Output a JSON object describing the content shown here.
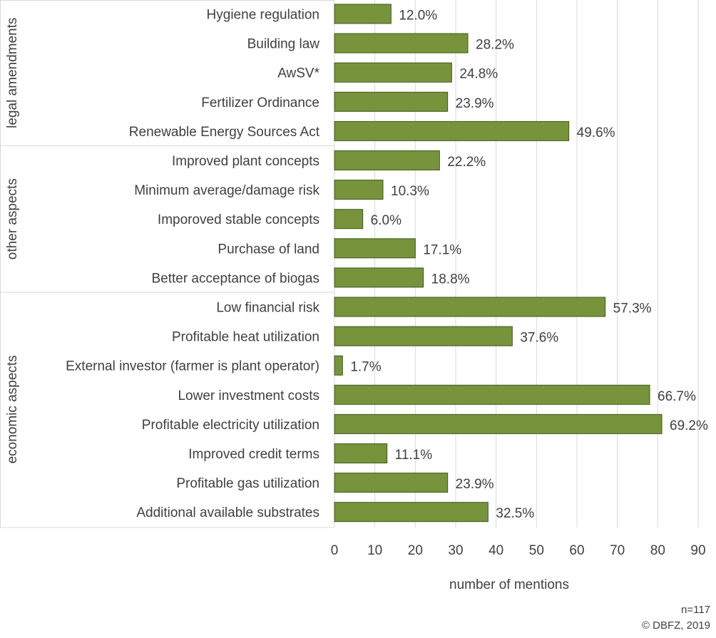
{
  "chart_data": {
    "type": "bar",
    "orientation": "horizontal",
    "xlabel": "number of mentions",
    "xlim": [
      0,
      90
    ],
    "xticks": [
      0,
      10,
      20,
      30,
      40,
      50,
      60,
      70,
      80,
      90
    ],
    "grid": true,
    "bar_color": "#77933c",
    "bar_edge_color": "#3d5a1a",
    "groups": [
      {
        "name": "legal amendments",
        "items": [
          {
            "label": "Hygiene regulation",
            "value": 14,
            "pct_label": "12.0%"
          },
          {
            "label": "Building law",
            "value": 33,
            "pct_label": "28.2%"
          },
          {
            "label": "AwSV*",
            "value": 29,
            "pct_label": "24.8%"
          },
          {
            "label": "Fertilizer Ordinance",
            "value": 28,
            "pct_label": "23.9%"
          },
          {
            "label": "Renewable Energy Sources Act",
            "value": 58,
            "pct_label": "49.6%"
          }
        ]
      },
      {
        "name": "other aspects",
        "items": [
          {
            "label": "Improved plant concepts",
            "value": 26,
            "pct_label": "22.2%"
          },
          {
            "label": "Minimum average/damage risk",
            "value": 12,
            "pct_label": "10.3%"
          },
          {
            "label": "Imporoved stable concepts",
            "value": 7,
            "pct_label": "6.0%"
          },
          {
            "label": "Purchase of land",
            "value": 20,
            "pct_label": "17.1%"
          },
          {
            "label": "Better acceptance of biogas",
            "value": 22,
            "pct_label": "18.8%"
          }
        ]
      },
      {
        "name": "economic aspects",
        "items": [
          {
            "label": "Low financial risk",
            "value": 67,
            "pct_label": "57.3%"
          },
          {
            "label": "Profitable heat utilization",
            "value": 44,
            "pct_label": "37.6%"
          },
          {
            "label": "External investor (farmer is plant operator)",
            "value": 2,
            "pct_label": "1.7%"
          },
          {
            "label": "Lower investment costs",
            "value": 78,
            "pct_label": "66.7%"
          },
          {
            "label": "Profitable electricity utilization",
            "value": 81,
            "pct_label": "69.2%"
          },
          {
            "label": "Improved credit terms",
            "value": 13,
            "pct_label": "11.1%"
          },
          {
            "label": "Profitable gas utilization",
            "value": 28,
            "pct_label": "23.9%"
          },
          {
            "label": "Additional available substrates",
            "value": 38,
            "pct_label": "32.5%"
          }
        ]
      }
    ],
    "notes": [
      "n=117",
      "© DBFZ, 2019"
    ]
  }
}
